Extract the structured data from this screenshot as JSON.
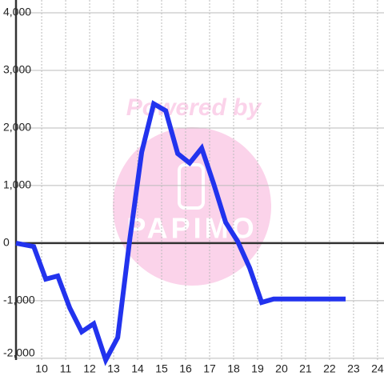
{
  "chart_data": {
    "type": "line",
    "watermark": [
      "Powered by",
      "PAPIMO"
    ],
    "series": [
      {
        "color": "#2233ee",
        "x": [
          8.93,
          9.67,
          10.17,
          10.67,
          11.17,
          11.67,
          12.17,
          12.67,
          13.17,
          13.67,
          14.17,
          14.67,
          15.17,
          15.67,
          16.17,
          16.67,
          17.17,
          17.67,
          18.17,
          18.67,
          19.17,
          19.67,
          20.17,
          20.67,
          21.17,
          21.67,
          22.17,
          22.67
        ],
        "values": [
          0,
          -60,
          -625,
          -570,
          -1125,
          -1540,
          -1400,
          -2030,
          -1640,
          55,
          1580,
          2420,
          2300,
          1555,
          1390,
          1650,
          1030,
          360,
          30,
          -430,
          -1030,
          -970,
          -970,
          -970,
          -970,
          -970,
          -970,
          -970
        ]
      }
    ],
    "xlim": [
      8.93,
      24.27
    ],
    "xticks": [
      10,
      11,
      12,
      13,
      14,
      15,
      16,
      17,
      18,
      19,
      20,
      21,
      22,
      23,
      24
    ],
    "ylim": [
      -2030,
      4000
    ],
    "yticks": [
      {
        "value": 4000,
        "label": "4,000"
      },
      {
        "value": 3000,
        "label": "3,000"
      },
      {
        "value": 2000,
        "label": "2,000"
      },
      {
        "value": 1000,
        "label": "1,000"
      },
      0,
      {
        "value": -1000,
        "label": "-1,000"
      },
      {
        "value": -2000,
        "label": "-2,000"
      }
    ],
    "grid": true
  }
}
